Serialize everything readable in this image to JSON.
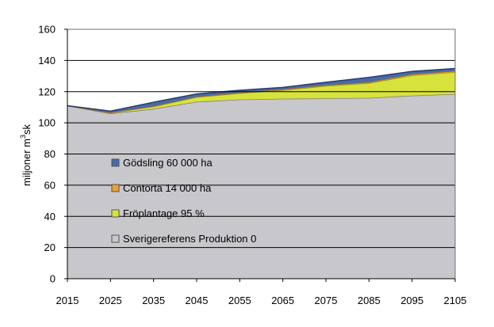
{
  "chart_data": {
    "type": "area",
    "stacked": true,
    "title": "",
    "xlabel": "",
    "ylabel": "miljoner m³sk",
    "ylabel_parts": {
      "main": "miljoner m",
      "sup": "3",
      "tail": "sk"
    },
    "ylim": [
      0,
      160
    ],
    "yticks": [
      0,
      20,
      40,
      60,
      80,
      100,
      120,
      140,
      160
    ],
    "x": [
      2015,
      2025,
      2035,
      2045,
      2055,
      2065,
      2075,
      2085,
      2095,
      2105
    ],
    "grid": {
      "horizontal": true,
      "vertical": false
    },
    "legend_position": "left",
    "series": [
      {
        "name": "Sverigereferens Produktion 0",
        "color": "#c8c8cc",
        "edge": "#7f7f7f",
        "values": [
          111,
          106,
          109,
          113.5,
          115,
          115.5,
          115.7,
          116,
          117.5,
          118.5
        ]
      },
      {
        "name": "Fröplantage 95 %",
        "color": "#d8e23c",
        "edge": "#8f9a20",
        "values": [
          0,
          0.5,
          1.5,
          3,
          4,
          5.5,
          8,
          9.5,
          13,
          14
        ]
      },
      {
        "name": "Contorta 14 000 ha",
        "color": "#f0a030",
        "edge": "#a86e1e",
        "values": [
          0,
          0,
          0.2,
          0.3,
          0.4,
          0.5,
          0.5,
          0.6,
          0.7,
          0.8
        ]
      },
      {
        "name": "Gödsling 60 000 ha",
        "color": "#4a6aaa",
        "edge": "#2a4070",
        "values": [
          0,
          1,
          2.5,
          1.7,
          1.5,
          1.2,
          1.8,
          3,
          1.8,
          1.5
        ]
      }
    ],
    "legend_order": [
      "Gödsling 60 000 ha",
      "Contorta 14 000 ha",
      "Fröplantage 95 %",
      "Sverigereferens Produktion 0"
    ]
  }
}
